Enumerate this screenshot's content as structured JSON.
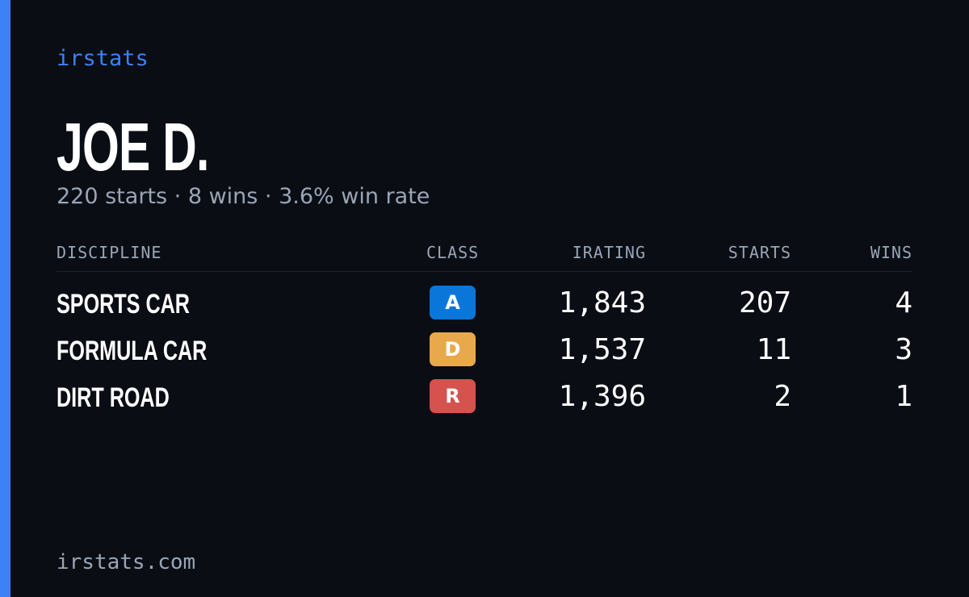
{
  "brand": "irstats",
  "player": {
    "name": "JOE D.",
    "summary": "220 starts · 8 wins · 3.6% win rate"
  },
  "table": {
    "headers": {
      "discipline": "DISCIPLINE",
      "class": "CLASS",
      "irating": "IRATING",
      "starts": "STARTS",
      "wins": "WINS"
    },
    "rows": [
      {
        "discipline": "SPORTS CAR",
        "class": "A",
        "class_color": "#0a76d9",
        "irating": "1,843",
        "starts": "207",
        "wins": "4"
      },
      {
        "discipline": "FORMULA CAR",
        "class": "D",
        "class_color": "#e8a94c",
        "irating": "1,537",
        "starts": "11",
        "wins": "3"
      },
      {
        "discipline": "DIRT ROAD",
        "class": "R",
        "class_color": "#d5524f",
        "irating": "1,396",
        "starts": "2",
        "wins": "1"
      }
    ]
  },
  "footer": {
    "url": "irstats.com"
  },
  "colors": {
    "accent": "#3b82f6",
    "background": "#0a0d14",
    "muted_text": "#9aa5b6"
  }
}
